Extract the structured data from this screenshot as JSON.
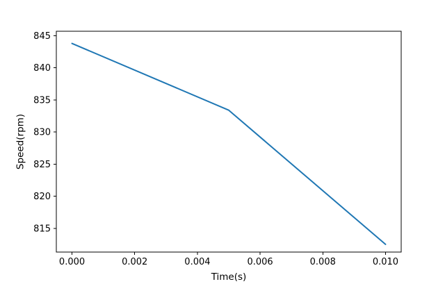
{
  "figure": {
    "background": "#ffffff",
    "spine_color": "#000000"
  },
  "chart_data": {
    "type": "line",
    "title": "",
    "xlabel": "Time(s)",
    "ylabel": "Speed(rpm)",
    "series": [
      {
        "name": "speed",
        "color": "#1f77b4",
        "x": [
          0.0,
          0.005,
          0.01
        ],
        "y": [
          843.8,
          833.4,
          812.5
        ]
      }
    ],
    "xlim": [
      -0.0005,
      0.0105
    ],
    "ylim": [
      811.3,
      845.7
    ],
    "xticks": {
      "values": [
        0.0,
        0.002,
        0.004,
        0.006,
        0.008,
        0.01
      ],
      "labels": [
        "0.000",
        "0.002",
        "0.004",
        "0.006",
        "0.008",
        "0.010"
      ]
    },
    "yticks": {
      "values": [
        815,
        820,
        825,
        830,
        835,
        840,
        845
      ],
      "labels": [
        "815",
        "820",
        "825",
        "830",
        "835",
        "840",
        "845"
      ]
    },
    "grid": false,
    "legend": null
  }
}
